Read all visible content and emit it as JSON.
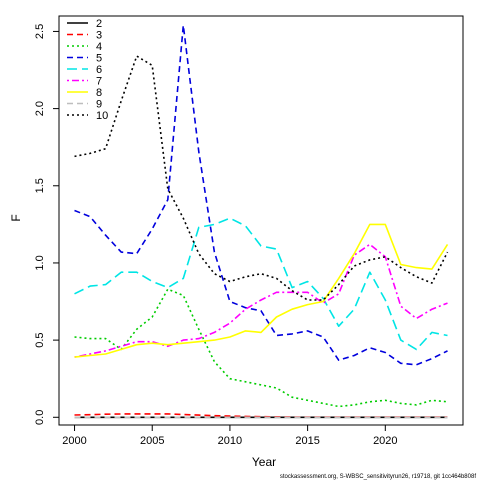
{
  "chart_data": {
    "type": "line",
    "title": "",
    "xlabel": "Year",
    "ylabel": "F",
    "xlim": [
      1999,
      2025
    ],
    "ylim": [
      -0.05,
      2.6
    ],
    "xticks": [
      2000,
      2005,
      2010,
      2015,
      2020
    ],
    "yticks": [
      0.0,
      0.5,
      1.0,
      1.5,
      2.0,
      2.5
    ],
    "ytick_labels": [
      "0.0",
      "0.5",
      "1.0",
      "1.5",
      "2.0",
      "2.5"
    ],
    "legend_position": "top-left",
    "x": [
      2000,
      2001,
      2002,
      2003,
      2004,
      2005,
      2006,
      2007,
      2008,
      2009,
      2010,
      2011,
      2012,
      2013,
      2014,
      2015,
      2016,
      2017,
      2018,
      2019,
      2020,
      2021,
      2022,
      2023,
      2024
    ],
    "series": [
      {
        "name": "2",
        "color": "#000000",
        "dash": "solid",
        "values": [
          0.0,
          0.0,
          0.0,
          0.0,
          0.0,
          0.0,
          0.0,
          0.0,
          0.0,
          0.0,
          0.0,
          0.0,
          0.0,
          0.0,
          0.0,
          0.0,
          0.0,
          0.0,
          0.0,
          0.0,
          0.0,
          0.0,
          0.0,
          0.0,
          0.0
        ]
      },
      {
        "name": "3",
        "color": "#ff0000",
        "dash": "dashed",
        "values": [
          0.015,
          0.017,
          0.02,
          0.021,
          0.022,
          0.022,
          0.022,
          0.018,
          0.014,
          0.01,
          0.008,
          0.006,
          0.004,
          0.003,
          0.002,
          0.002,
          0.002,
          0.002,
          0.002,
          0.002,
          0.002,
          0.002,
          0.002,
          0.002,
          0.002
        ]
      },
      {
        "name": "4",
        "color": "#00cc00",
        "dash": "dotted",
        "values": [
          0.52,
          0.51,
          0.51,
          0.44,
          0.57,
          0.65,
          0.83,
          0.79,
          0.57,
          0.36,
          0.25,
          0.23,
          0.21,
          0.19,
          0.13,
          0.11,
          0.09,
          0.07,
          0.08,
          0.1,
          0.11,
          0.09,
          0.08,
          0.11,
          0.1
        ]
      },
      {
        "name": "5",
        "color": "#0000dd",
        "dash": "dashed",
        "values": [
          1.34,
          1.3,
          1.18,
          1.07,
          1.06,
          1.22,
          1.41,
          2.54,
          1.72,
          1.07,
          0.75,
          0.71,
          0.69,
          0.53,
          0.54,
          0.56,
          0.52,
          0.37,
          0.4,
          0.45,
          0.42,
          0.35,
          0.34,
          0.38,
          0.43
        ]
      },
      {
        "name": "6",
        "color": "#00e5e5",
        "dash": "longdash",
        "values": [
          0.8,
          0.85,
          0.86,
          0.94,
          0.94,
          0.88,
          0.84,
          0.9,
          1.23,
          1.25,
          1.29,
          1.24,
          1.11,
          1.09,
          0.84,
          0.88,
          0.77,
          0.59,
          0.7,
          0.94,
          0.76,
          0.5,
          0.44,
          0.55,
          0.53
        ]
      },
      {
        "name": "7",
        "color": "#ff00ff",
        "dash": "dotdash",
        "values": [
          0.39,
          0.41,
          0.43,
          0.46,
          0.49,
          0.49,
          0.46,
          0.5,
          0.51,
          0.55,
          0.61,
          0.7,
          0.76,
          0.81,
          0.81,
          0.81,
          0.74,
          0.8,
          1.05,
          1.12,
          1.04,
          0.72,
          0.64,
          0.7,
          0.74
        ]
      },
      {
        "name": "8",
        "color": "#ffff00",
        "dash": "solid",
        "values": [
          0.39,
          0.4,
          0.41,
          0.44,
          0.47,
          0.48,
          0.47,
          0.48,
          0.49,
          0.5,
          0.52,
          0.56,
          0.55,
          0.65,
          0.7,
          0.73,
          0.75,
          0.9,
          1.06,
          1.25,
          1.25,
          0.99,
          0.97,
          0.96,
          1.12
        ]
      },
      {
        "name": "9",
        "color": "#bebebe",
        "dash": "dashed",
        "values": [
          0.0,
          0.0,
          0.0,
          0.0,
          0.0,
          0.0,
          0.0,
          0.0,
          0.0,
          0.0,
          0.0,
          0.0,
          0.0,
          0.0,
          0.0,
          0.0,
          0.0,
          0.0,
          0.0,
          0.0,
          0.0,
          0.0,
          0.0,
          0.0,
          0.0
        ]
      },
      {
        "name": "10",
        "color": "#000000",
        "dash": "dotted",
        "values": [
          1.69,
          1.71,
          1.74,
          2.05,
          2.34,
          2.28,
          1.48,
          1.29,
          1.06,
          0.93,
          0.88,
          0.91,
          0.93,
          0.9,
          0.82,
          0.76,
          0.76,
          0.86,
          0.98,
          1.02,
          1.04,
          0.97,
          0.91,
          0.87,
          1.07
        ]
      }
    ]
  },
  "footer": "stockassessment.org, S-WBSC_sensitivityrun26, r19718, git 1cc464b808f"
}
